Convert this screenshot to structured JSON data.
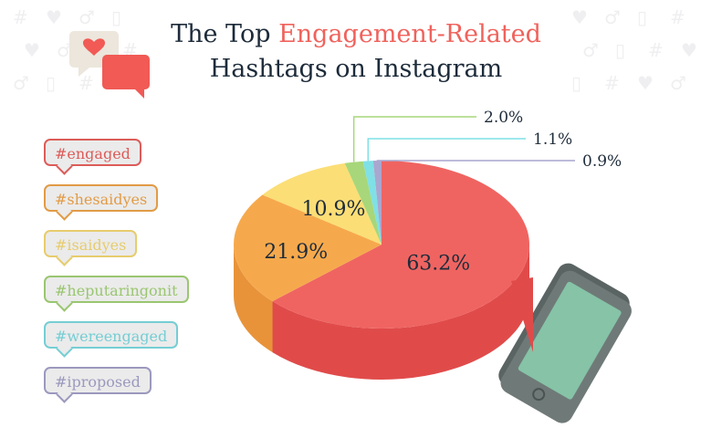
{
  "title": {
    "line1_pre": "The Top ",
    "line1_hl": "Engagement-Related",
    "line2": "Hashtags on Instagram"
  },
  "colors": {
    "title": "#1d2b3a",
    "accent": "#f0625c"
  },
  "chart_data": {
    "type": "pie",
    "title": "The Top Engagement-Related Hashtags on Instagram",
    "series": [
      {
        "name": "#engaged",
        "value": 63.2,
        "label": "63.2%",
        "color": "#ef6461",
        "side": "#e04b4a"
      },
      {
        "name": "#shesaidyes",
        "value": 21.9,
        "label": "21.9%",
        "color": "#f6a94c",
        "side": "#e8933a"
      },
      {
        "name": "#isaidyes",
        "value": 10.9,
        "label": "10.9%",
        "color": "#fbde76",
        "side": "#efc95a"
      },
      {
        "name": "#heputaringonit",
        "value": 2.0,
        "label": "2.0%",
        "color": "#a7d77a",
        "side": "#8fc162"
      },
      {
        "name": "#wereengaged",
        "value": 1.1,
        "label": "1.1%",
        "color": "#7fe0e6",
        "side": "#5cc8cf"
      },
      {
        "name": "#iproposed",
        "value": 0.9,
        "label": "0.9%",
        "color": "#a9a6cf",
        "side": "#8e8ab8"
      }
    ],
    "legend_placement": "left",
    "style": "3d"
  }
}
